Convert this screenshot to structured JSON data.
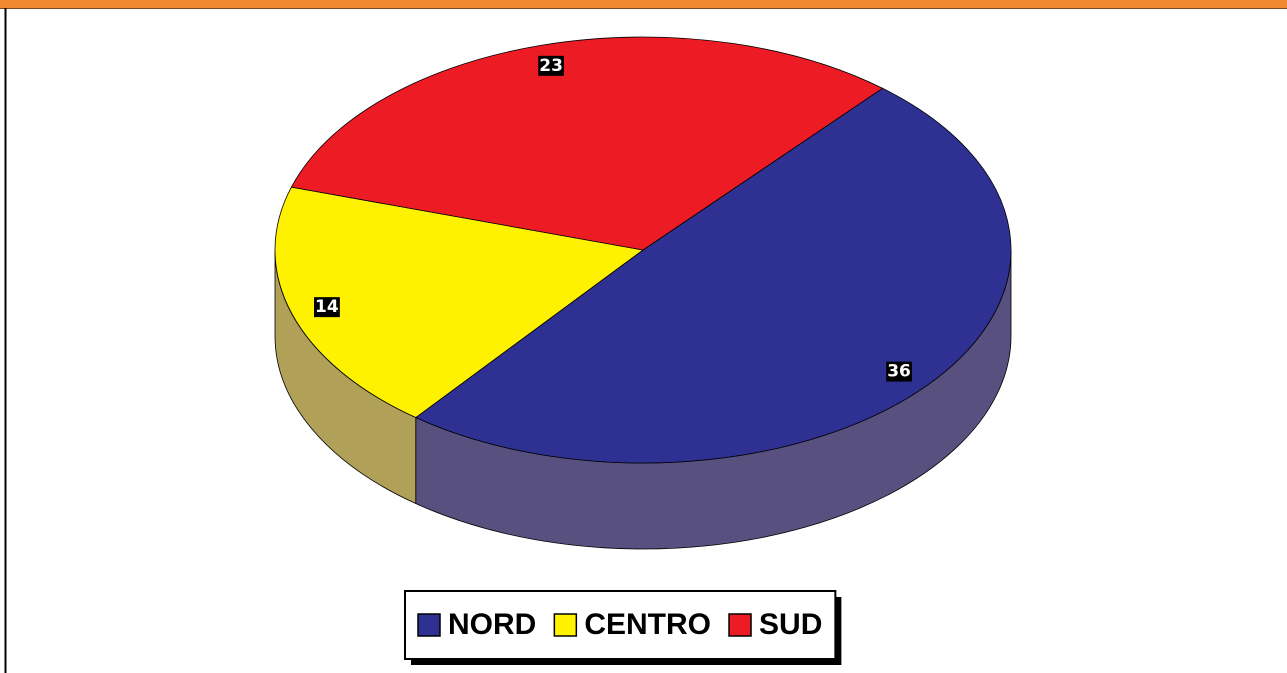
{
  "chart_data": {
    "type": "pie3d",
    "categories": [
      "NORD",
      "CENTRO",
      "SUD"
    ],
    "values": [
      36,
      14,
      23
    ],
    "colors": [
      "#2e3192",
      "#fff200",
      "#ed1c24"
    ],
    "side_colors": [
      "#58507e",
      "#b0a058",
      "#8a2a2a"
    ],
    "legend": "bottom"
  }
}
